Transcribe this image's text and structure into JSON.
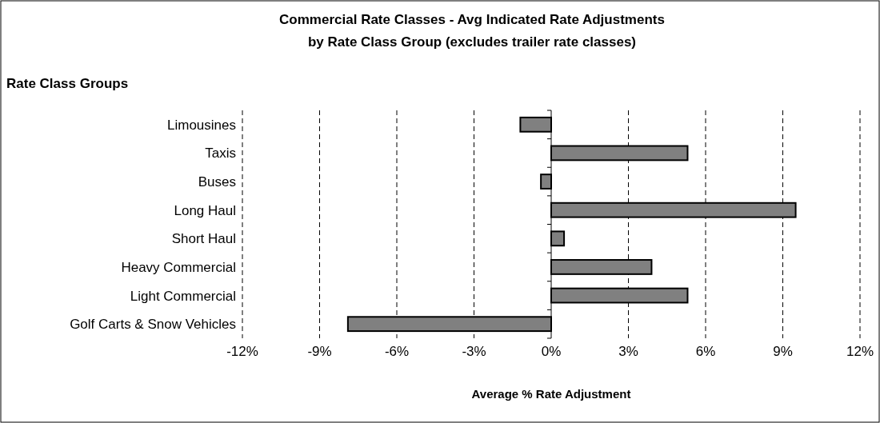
{
  "chart_data": {
    "type": "bar",
    "orientation": "horizontal",
    "title": "Commercial Rate Classes - Avg Indicated Rate Adjustments",
    "subtitle": "by Rate Class Group (excludes trailer rate classes)",
    "ylabel": "Rate Class Groups",
    "xlabel": "Average % Rate Adjustment",
    "categories": [
      "Limousines",
      "Taxis",
      "Buses",
      "Long Haul",
      "Short Haul",
      "Heavy Commercial",
      "Light Commercial",
      "Golf Carts & Snow Vehicles"
    ],
    "values": [
      -1.2,
      5.3,
      -0.4,
      9.5,
      0.5,
      3.9,
      5.3,
      -7.9
    ],
    "color": "#808080",
    "xlim": [
      -12,
      12
    ],
    "xticks": [
      {
        "value": -12,
        "label": "-12%"
      },
      {
        "value": -9,
        "label": "-9%"
      },
      {
        "value": -6,
        "label": "-6%"
      },
      {
        "value": -3,
        "label": "-3%"
      },
      {
        "value": 0,
        "label": "0%"
      },
      {
        "value": 3,
        "label": "3%"
      },
      {
        "value": 6,
        "label": "6%"
      },
      {
        "value": 9,
        "label": "9%"
      },
      {
        "value": 12,
        "label": "12%"
      }
    ],
    "grid": "x"
  }
}
